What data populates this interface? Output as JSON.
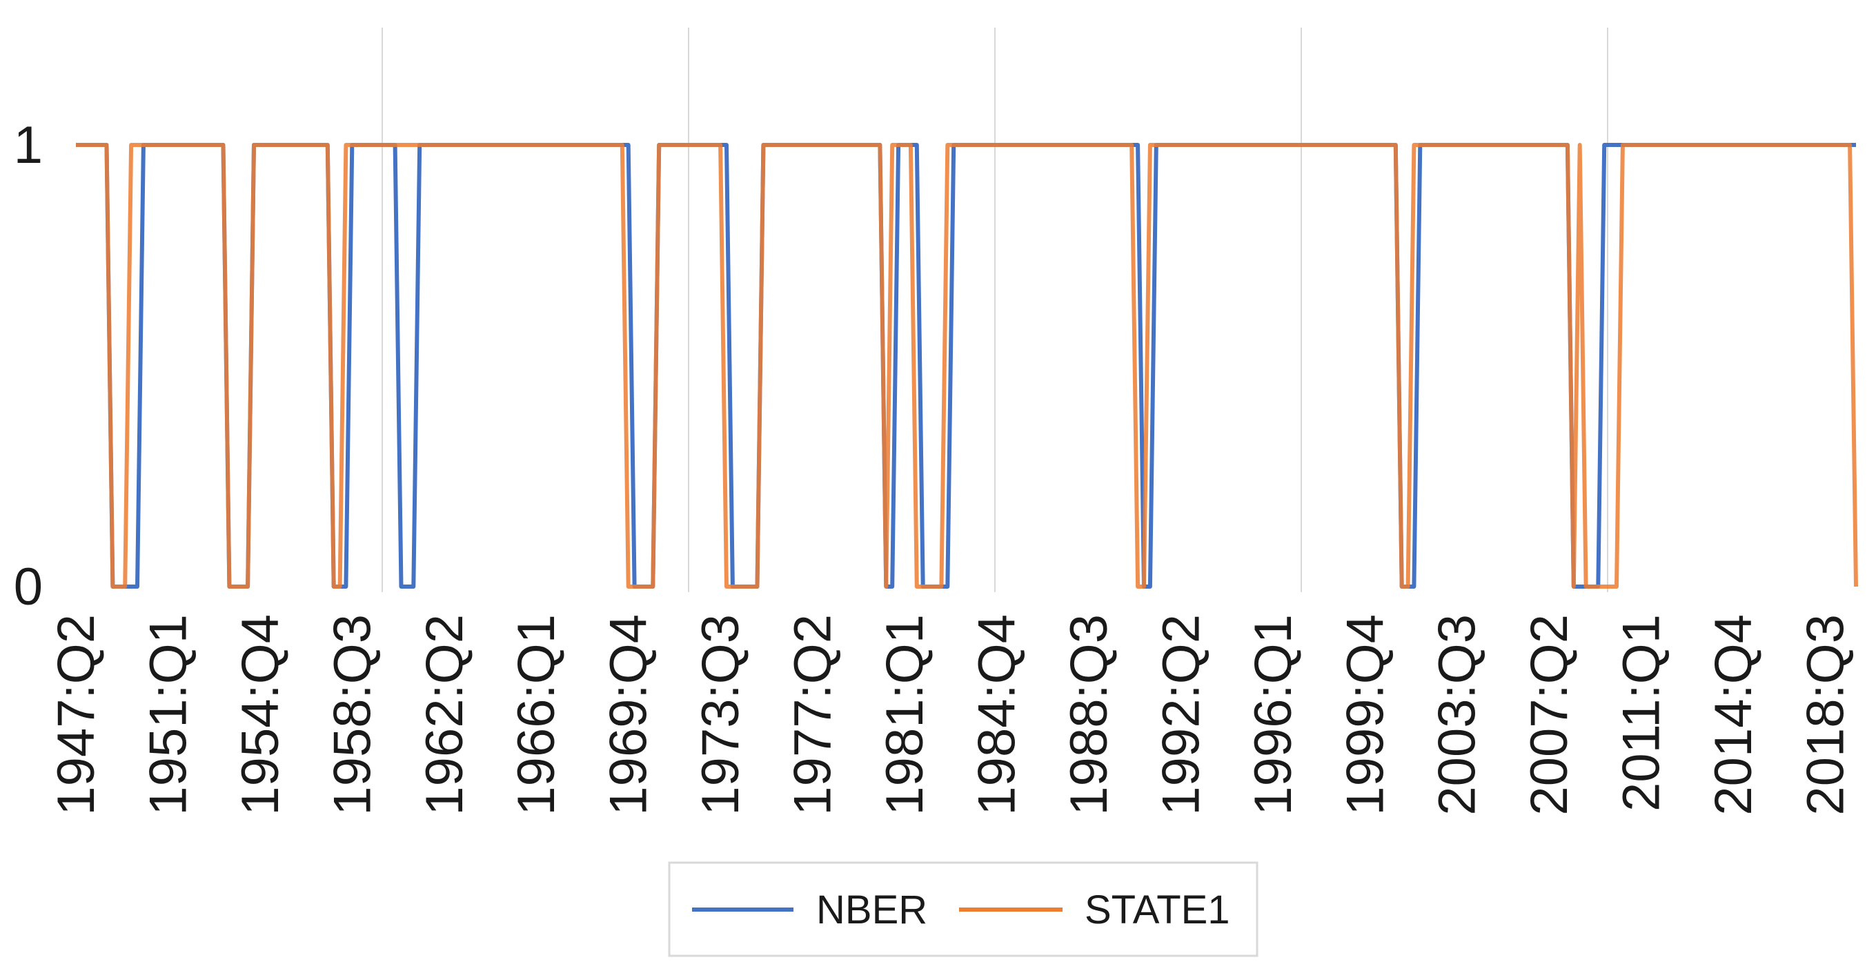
{
  "chart_data": {
    "type": "line",
    "title": "",
    "xlabel": "",
    "ylabel": "",
    "ylim": [
      0,
      1
    ],
    "y_ticks": [
      "0",
      "1"
    ],
    "grid": "vertical",
    "legend_position": "bottom",
    "x_tick_labels": [
      "1947:Q2",
      "1951:Q1",
      "1954:Q4",
      "1958:Q3",
      "1962:Q2",
      "1966:Q1",
      "1969:Q4",
      "1973:Q3",
      "1977:Q2",
      "1981:Q1",
      "1984:Q4",
      "1988:Q3",
      "1992:Q2",
      "1996:Q1",
      "1999:Q4",
      "2003:Q3",
      "2007:Q2",
      "2011:Q1",
      "2014:Q4",
      "2018:Q3"
    ],
    "x_range": [
      "1947:Q2",
      "2019:Q4"
    ],
    "series": [
      {
        "name": "NBER",
        "color": "#4472C4",
        "zero_periods": [
          [
            "1948:Q4",
            "1949:Q4"
          ],
          [
            "1953:Q3",
            "1954:Q2"
          ],
          [
            "1957:Q4",
            "1958:Q2"
          ],
          [
            "1960:Q3",
            "1961:Q1"
          ],
          [
            "1970:Q1",
            "1970:Q4"
          ],
          [
            "1974:Q1",
            "1975:Q1"
          ],
          [
            "1980:Q2",
            "1980:Q3"
          ],
          [
            "1981:Q4",
            "1982:Q4"
          ],
          [
            "1990:Q4",
            "1991:Q1"
          ],
          [
            "2001:Q2",
            "2001:Q4"
          ],
          [
            "2008:Q2",
            "2009:Q2"
          ]
        ]
      },
      {
        "name": "STATE1",
        "color": "#ED7D31",
        "zero_periods": [
          [
            "1948:Q4",
            "1949:Q2"
          ],
          [
            "1953:Q3",
            "1954:Q2"
          ],
          [
            "1957:Q4",
            "1958:Q1"
          ],
          [
            "1969:Q4",
            "1970:Q4"
          ],
          [
            "1973:Q4",
            "1975:Q1"
          ],
          [
            "1980:Q2",
            "1980:Q2"
          ],
          [
            "1981:Q3",
            "1982:Q3"
          ],
          [
            "1990:Q3",
            "1990:Q4"
          ],
          [
            "2001:Q2",
            "2001:Q3"
          ],
          [
            "2008:Q2",
            "2008:Q2"
          ],
          [
            "2008:Q4",
            "2010:Q1"
          ],
          [
            "2019:Q4",
            "2019:Q4"
          ]
        ]
      }
    ]
  }
}
